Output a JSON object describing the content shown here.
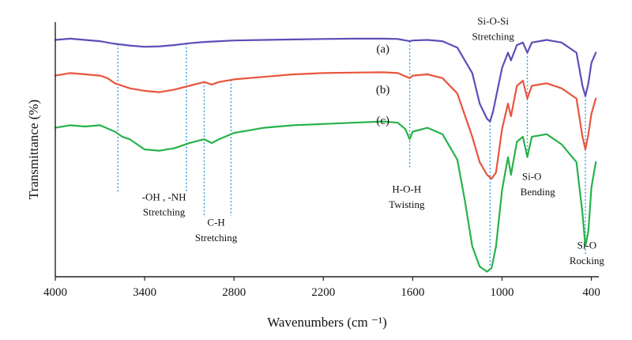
{
  "chart_data": {
    "type": "line",
    "title": "",
    "xlabel": "Wavenumbers (cm ⁻¹)",
    "ylabel": "Transmittance (%)",
    "xlim": [
      4000,
      350
    ],
    "ylim": [
      0,
      100
    ],
    "x_ticks": [
      4000,
      3400,
      2800,
      2200,
      1600,
      1000,
      400
    ],
    "grid": false,
    "series_label_font": "series labels",
    "series": [
      {
        "name": "(a)",
        "color": "#5a4fb8",
        "label_x": 1800,
        "label_y": 88,
        "points": [
          [
            4000,
            93
          ],
          [
            3900,
            93.5
          ],
          [
            3800,
            93
          ],
          [
            3700,
            92.5
          ],
          [
            3600,
            91.5
          ],
          [
            3500,
            90.8
          ],
          [
            3400,
            90.3
          ],
          [
            3300,
            90.5
          ],
          [
            3200,
            91
          ],
          [
            3100,
            91.7
          ],
          [
            3000,
            92.2
          ],
          [
            2900,
            92.5
          ],
          [
            2800,
            92.8
          ],
          [
            2600,
            93
          ],
          [
            2400,
            93.2
          ],
          [
            2200,
            93.4
          ],
          [
            2000,
            93.5
          ],
          [
            1800,
            93.5
          ],
          [
            1700,
            93.4
          ],
          [
            1620,
            92.5
          ],
          [
            1600,
            92.8
          ],
          [
            1500,
            93
          ],
          [
            1400,
            92.5
          ],
          [
            1300,
            90
          ],
          [
            1200,
            80
          ],
          [
            1150,
            68
          ],
          [
            1100,
            62
          ],
          [
            1080,
            61
          ],
          [
            1060,
            65
          ],
          [
            1000,
            82
          ],
          [
            960,
            88
          ],
          [
            940,
            85
          ],
          [
            900,
            91
          ],
          [
            860,
            92
          ],
          [
            830,
            88
          ],
          [
            800,
            92
          ],
          [
            700,
            93
          ],
          [
            600,
            92
          ],
          [
            500,
            88
          ],
          [
            460,
            75
          ],
          [
            440,
            71
          ],
          [
            420,
            76
          ],
          [
            400,
            84
          ],
          [
            370,
            88
          ]
        ]
      },
      {
        "name": "(b)",
        "color": "#e8553e",
        "label_x": 1800,
        "label_y": 72,
        "points": [
          [
            4000,
            79
          ],
          [
            3900,
            80
          ],
          [
            3800,
            79.5
          ],
          [
            3700,
            79
          ],
          [
            3650,
            78
          ],
          [
            3600,
            76
          ],
          [
            3500,
            74
          ],
          [
            3400,
            73
          ],
          [
            3300,
            72.5
          ],
          [
            3200,
            73.5
          ],
          [
            3100,
            75
          ],
          [
            3000,
            76.5
          ],
          [
            2950,
            75.5
          ],
          [
            2900,
            76.5
          ],
          [
            2800,
            77.5
          ],
          [
            2600,
            78.5
          ],
          [
            2400,
            79.5
          ],
          [
            2200,
            80
          ],
          [
            2000,
            80.2
          ],
          [
            1800,
            80.3
          ],
          [
            1700,
            80
          ],
          [
            1620,
            78
          ],
          [
            1600,
            79
          ],
          [
            1500,
            79.5
          ],
          [
            1400,
            78
          ],
          [
            1300,
            72
          ],
          [
            1200,
            55
          ],
          [
            1150,
            45
          ],
          [
            1100,
            40
          ],
          [
            1070,
            38.5
          ],
          [
            1040,
            41
          ],
          [
            1000,
            58
          ],
          [
            960,
            68
          ],
          [
            940,
            63
          ],
          [
            900,
            75
          ],
          [
            860,
            77
          ],
          [
            830,
            70
          ],
          [
            800,
            75
          ],
          [
            700,
            76
          ],
          [
            600,
            74
          ],
          [
            500,
            70
          ],
          [
            460,
            55
          ],
          [
            440,
            50
          ],
          [
            420,
            56
          ],
          [
            400,
            64
          ],
          [
            370,
            70
          ]
        ]
      },
      {
        "name": "(c)",
        "color": "#27b24a",
        "label_x": 1800,
        "label_y": 60,
        "points": [
          [
            4000,
            58.5
          ],
          [
            3900,
            59.5
          ],
          [
            3800,
            59
          ],
          [
            3700,
            59.5
          ],
          [
            3600,
            57
          ],
          [
            3550,
            55
          ],
          [
            3500,
            54
          ],
          [
            3400,
            50
          ],
          [
            3300,
            49.5
          ],
          [
            3200,
            50.5
          ],
          [
            3100,
            52.5
          ],
          [
            3000,
            54
          ],
          [
            2950,
            52.5
          ],
          [
            2900,
            54
          ],
          [
            2800,
            56.5
          ],
          [
            2700,
            57.5
          ],
          [
            2600,
            58.5
          ],
          [
            2400,
            59.5
          ],
          [
            2200,
            60
          ],
          [
            2000,
            60.5
          ],
          [
            1800,
            61
          ],
          [
            1700,
            60.5
          ],
          [
            1650,
            58
          ],
          [
            1620,
            54
          ],
          [
            1600,
            57
          ],
          [
            1500,
            58.5
          ],
          [
            1400,
            56
          ],
          [
            1300,
            46
          ],
          [
            1250,
            30
          ],
          [
            1200,
            12
          ],
          [
            1150,
            4
          ],
          [
            1100,
            2
          ],
          [
            1070,
            3.5
          ],
          [
            1040,
            12
          ],
          [
            1000,
            34
          ],
          [
            960,
            47
          ],
          [
            940,
            40
          ],
          [
            900,
            53
          ],
          [
            860,
            55
          ],
          [
            830,
            47
          ],
          [
            800,
            55
          ],
          [
            700,
            56
          ],
          [
            600,
            52
          ],
          [
            500,
            45
          ],
          [
            460,
            25
          ],
          [
            440,
            12
          ],
          [
            420,
            18
          ],
          [
            400,
            35
          ],
          [
            370,
            45
          ]
        ]
      }
    ],
    "annotation_lines": [
      {
        "x": 3580,
        "top_series": "(a)",
        "bottom_y": 33
      },
      {
        "x": 3120,
        "top_series": "(a)",
        "bottom_y": 33
      },
      {
        "x": 3000,
        "top_series": "(b)",
        "bottom_y": 24
      },
      {
        "x": 2820,
        "top_series": "(b)",
        "bottom_y": 24
      },
      {
        "x": 1620,
        "top_series": "(a)",
        "bottom_y": 43
      },
      {
        "x": 1080,
        "top_series": "(a)",
        "bottom_y": 4
      },
      {
        "x": 830,
        "top_series": "(a)",
        "bottom_y": 47
      },
      {
        "x": 440,
        "top_series": "(a)",
        "bottom_y": 9
      }
    ],
    "annotations": [
      {
        "text": "-OH , -NH",
        "x": 3270,
        "y": 30
      },
      {
        "text": "Stretching",
        "x": 3270,
        "y": 24
      },
      {
        "text": "C-H",
        "x": 2920,
        "y": 20
      },
      {
        "text": "Stretching",
        "x": 2920,
        "y": 14
      },
      {
        "text": "H-O-H",
        "x": 1640,
        "y": 33
      },
      {
        "text": "Twisting",
        "x": 1640,
        "y": 27
      },
      {
        "text": "Si-O-Si",
        "x": 1060,
        "y": 99
      },
      {
        "text": "Stretching",
        "x": 1060,
        "y": 93
      },
      {
        "text": "Si-O",
        "x": 800,
        "y": 38
      },
      {
        "text": "Bending",
        "x": 760,
        "y": 32
      },
      {
        "text": "Si-O",
        "x": 430,
        "y": 11
      },
      {
        "text": "Rocking",
        "x": 430,
        "y": 5
      }
    ]
  }
}
